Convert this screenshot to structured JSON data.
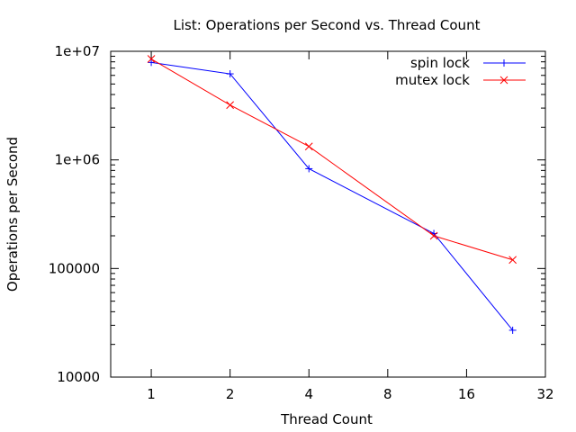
{
  "chart_data": {
    "type": "line",
    "title": "List: Operations per Second vs. Thread Count",
    "xlabel": "Thread Count",
    "ylabel": "Operations per Second",
    "x_scale": "log2",
    "y_scale": "log10",
    "xlim": [
      0.7,
      32
    ],
    "ylim": [
      10000,
      10000000
    ],
    "x_ticks": [
      1,
      2,
      4,
      8,
      16,
      32
    ],
    "x_tick_labels": [
      "1",
      "2",
      "4",
      "8",
      "16",
      "32"
    ],
    "y_ticks": [
      10000,
      100000,
      1000000,
      10000000
    ],
    "y_tick_labels": [
      "10000",
      "100000",
      "1e+06",
      "1e+07"
    ],
    "grid": false,
    "legend_position": "top-right",
    "series": [
      {
        "name": "spin lock",
        "color": "#0000ff",
        "marker": "plus",
        "x": [
          1,
          2,
          4,
          12,
          24
        ],
        "y": [
          7900000,
          6200000,
          830000,
          210000,
          27000
        ]
      },
      {
        "name": "mutex lock",
        "color": "#ff0000",
        "marker": "cross",
        "x": [
          1,
          2,
          4,
          12,
          24
        ],
        "y": [
          8500000,
          3200000,
          1330000,
          200000,
          120000
        ]
      }
    ]
  }
}
